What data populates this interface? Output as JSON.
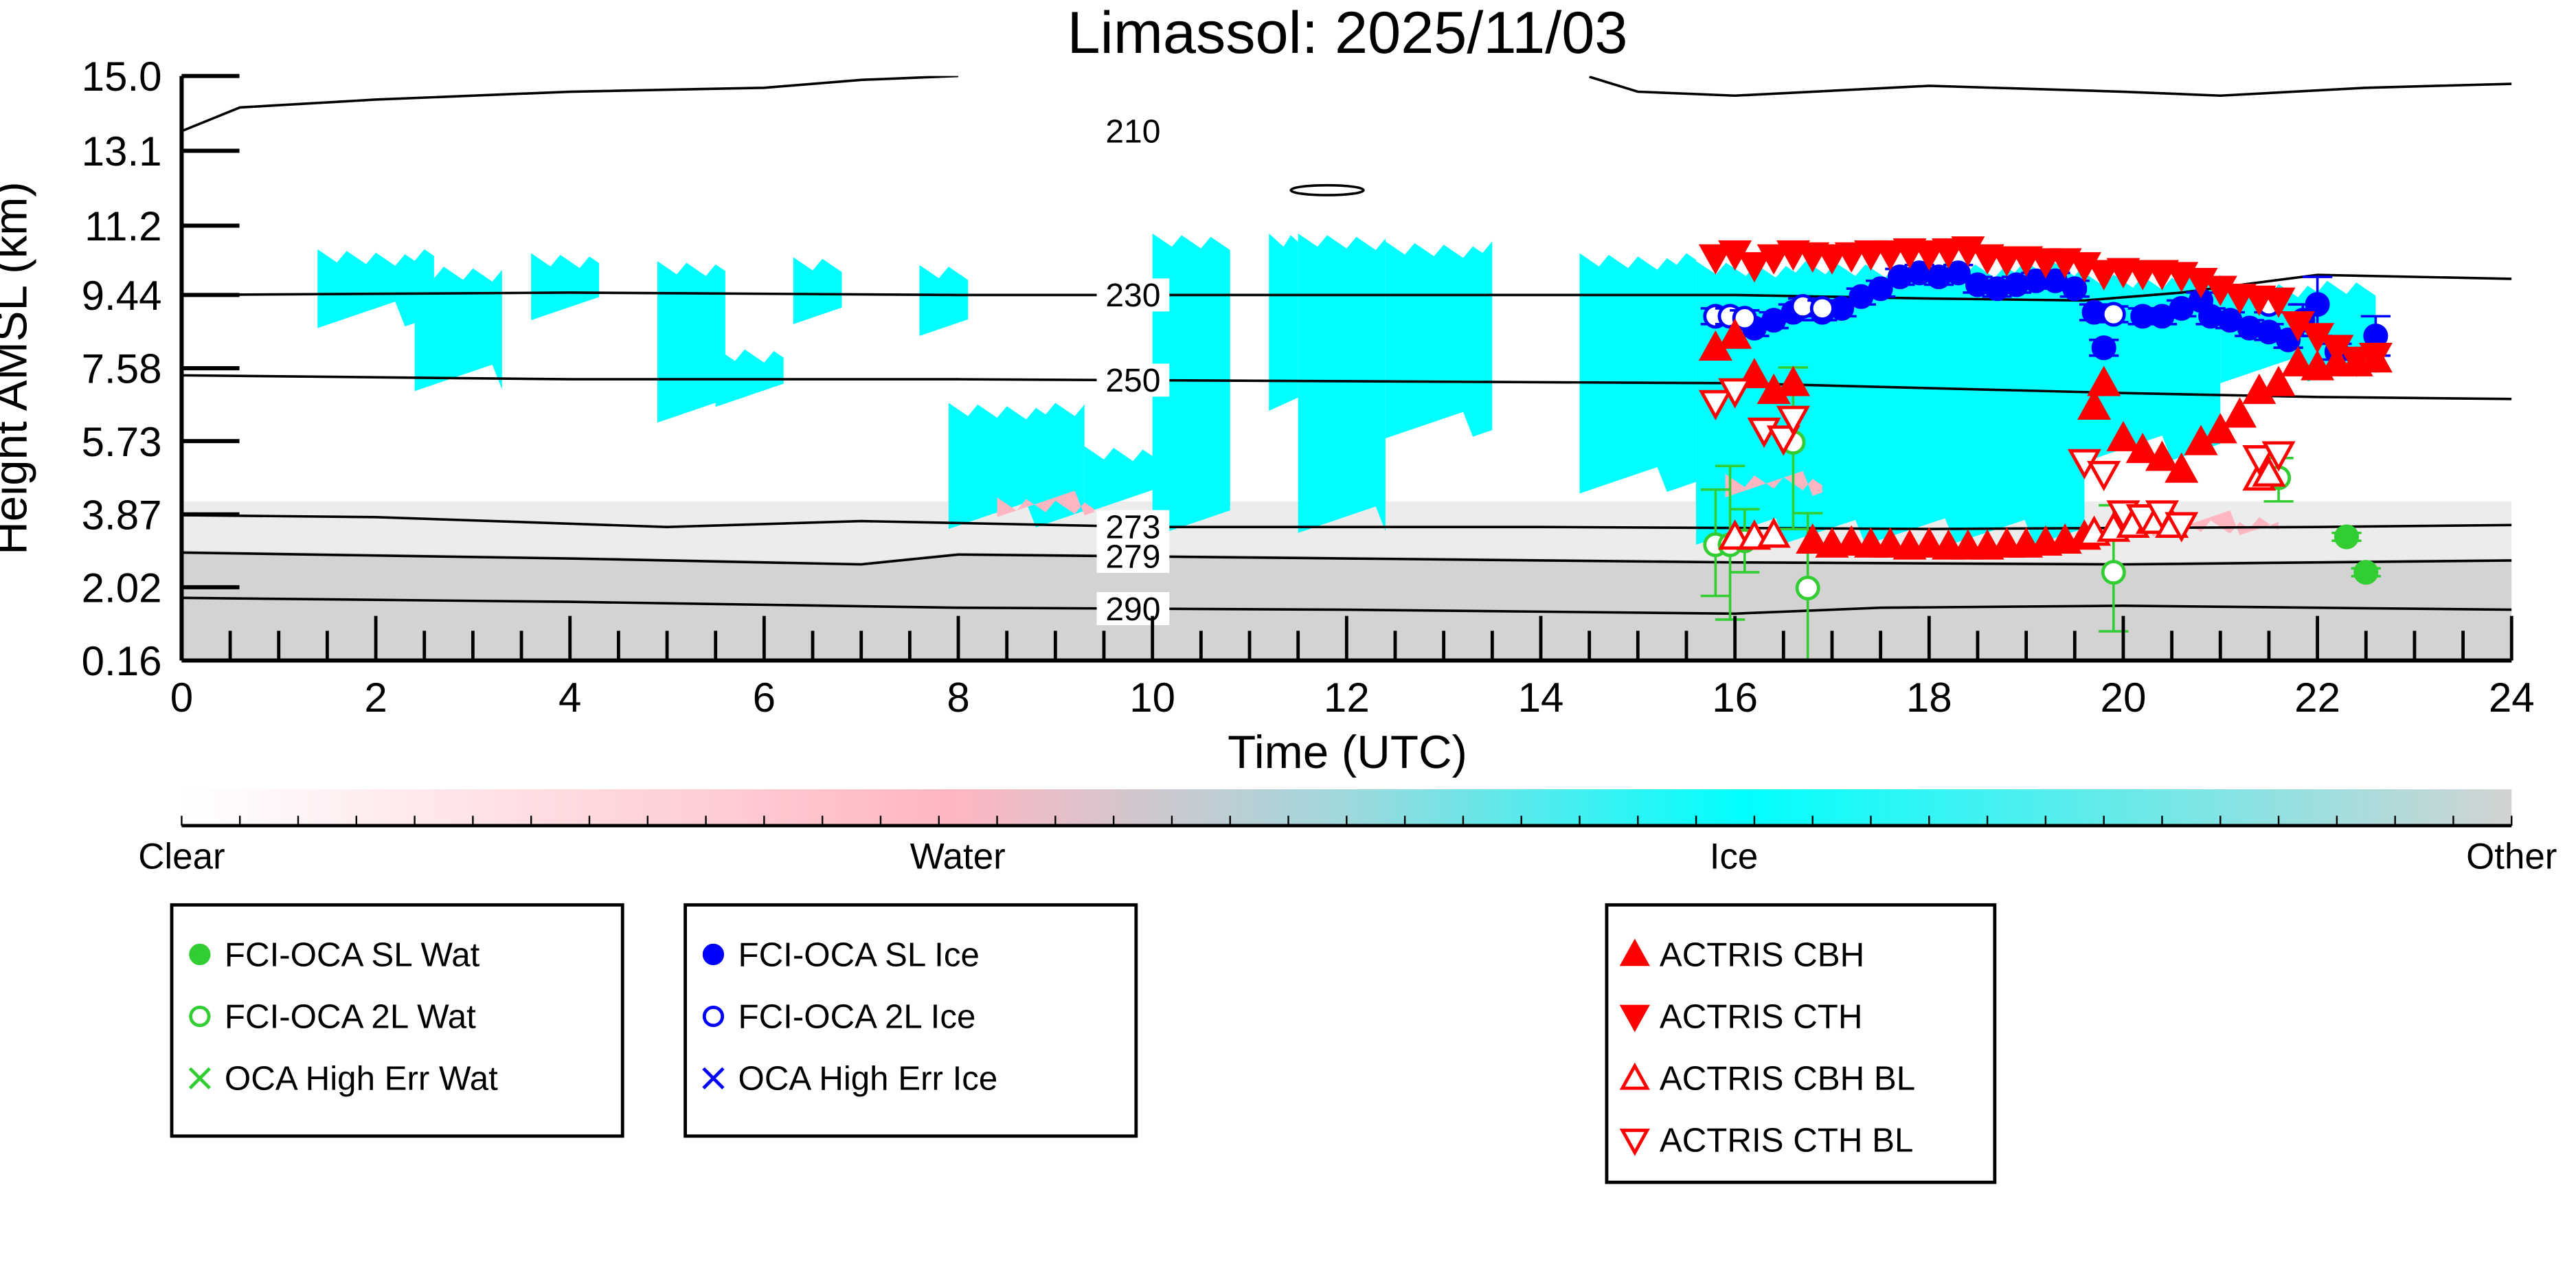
{
  "chart_data": {
    "type": "scatter",
    "title": "Limassol: 2025/11/03",
    "xlabel": "Time (UTC)",
    "ylabel": "Height AMSL (km)",
    "xlim": [
      0,
      24
    ],
    "ylim": [
      0.16,
      15.0
    ],
    "xticks": [
      "0",
      "2",
      "4",
      "6",
      "8",
      "10",
      "12",
      "14",
      "16",
      "18",
      "20",
      "22",
      "24"
    ],
    "xtick_values": [
      0,
      2,
      4,
      6,
      8,
      10,
      12,
      14,
      16,
      18,
      20,
      22,
      24
    ],
    "yticks": [
      "0.16",
      "2.02",
      "3.87",
      "5.73",
      "7.58",
      "9.44",
      "11.2",
      "13.1",
      "15.0"
    ],
    "ytick_values": [
      0.16,
      2.02,
      3.87,
      5.73,
      7.58,
      9.44,
      11.2,
      13.1,
      15.0
    ],
    "colorbar": {
      "labels": [
        "Clear",
        "Water",
        "Ice",
        "Other"
      ],
      "colors": [
        "#ffffff",
        "#ffb6c1",
        "#00ffff",
        "#d3d3d3"
      ]
    },
    "cloud_mask": [
      {
        "class": "ice",
        "t": [
          1.4,
          2.6
        ],
        "h": [
          8.6,
          10.6
        ]
      },
      {
        "class": "ice",
        "t": [
          2.4,
          3.3
        ],
        "h": [
          7.0,
          10.2
        ]
      },
      {
        "class": "ice",
        "t": [
          3.6,
          4.3
        ],
        "h": [
          8.8,
          10.5
        ]
      },
      {
        "class": "ice",
        "t": [
          4.9,
          5.6
        ],
        "h": [
          6.2,
          10.3
        ]
      },
      {
        "class": "ice",
        "t": [
          5.5,
          6.2
        ],
        "h": [
          6.6,
          8.1
        ]
      },
      {
        "class": "ice",
        "t": [
          6.3,
          6.8
        ],
        "h": [
          8.7,
          10.4
        ]
      },
      {
        "class": "ice",
        "t": [
          7.6,
          8.1
        ],
        "h": [
          8.4,
          10.2
        ]
      },
      {
        "class": "ice",
        "t": [
          7.9,
          9.3
        ],
        "h": [
          3.5,
          6.7
        ]
      },
      {
        "class": "ice",
        "t": [
          9.3,
          10.6
        ],
        "h": [
          3.9,
          5.6
        ]
      },
      {
        "class": "ice",
        "t": [
          10.0,
          10.8
        ],
        "h": [
          3.3,
          11.0
        ]
      },
      {
        "class": "ice",
        "t": [
          11.2,
          11.5
        ],
        "h": [
          6.5,
          11.0
        ]
      },
      {
        "class": "ice",
        "t": [
          11.5,
          12.4
        ],
        "h": [
          3.4,
          11.0
        ]
      },
      {
        "class": "ice",
        "t": [
          12.4,
          13.5
        ],
        "h": [
          5.8,
          10.8
        ]
      },
      {
        "class": "ice",
        "t": [
          14.4,
          15.6
        ],
        "h": [
          4.4,
          10.5
        ]
      },
      {
        "class": "ice",
        "t": [
          15.6,
          19.6
        ],
        "h": [
          3.1,
          10.3
        ]
      },
      {
        "class": "ice",
        "t": [
          19.6,
          21.0
        ],
        "h": [
          5.2,
          10.0
        ]
      },
      {
        "class": "ice",
        "t": [
          21.0,
          22.6
        ],
        "h": [
          7.2,
          9.8
        ]
      },
      {
        "class": "water",
        "t": [
          15.9,
          16.9
        ],
        "h": [
          4.3,
          4.9
        ]
      },
      {
        "class": "water",
        "t": [
          8.4,
          9.4
        ],
        "h": [
          3.8,
          4.3
        ]
      },
      {
        "class": "water",
        "t": [
          20.3,
          21.6
        ],
        "h": [
          3.3,
          3.8
        ]
      }
    ],
    "contours": [
      {
        "label": "210",
        "points": [
          [
            0,
            13.6
          ],
          [
            0.6,
            14.2
          ],
          [
            2,
            14.4
          ],
          [
            4,
            14.6
          ],
          [
            6,
            14.7
          ],
          [
            7,
            14.9
          ],
          [
            8,
            15.0
          ]
        ]
      },
      {
        "label": "210",
        "points": [
          [
            14.5,
            14.98
          ],
          [
            15.0,
            14.6
          ],
          [
            16,
            14.5
          ],
          [
            18,
            14.75
          ],
          [
            20,
            14.6
          ],
          [
            21,
            14.5
          ],
          [
            22.5,
            14.7
          ],
          [
            24,
            14.8
          ]
        ]
      },
      {
        "label": "230",
        "points": [
          [
            0,
            9.44
          ],
          [
            4,
            9.5
          ],
          [
            8,
            9.44
          ],
          [
            12,
            9.44
          ],
          [
            16,
            9.44
          ],
          [
            18,
            9.35
          ],
          [
            19.6,
            9.3
          ],
          [
            20.6,
            9.5
          ],
          [
            22,
            9.95
          ],
          [
            24,
            9.85
          ]
        ]
      },
      {
        "label": "250",
        "points": [
          [
            0,
            7.4
          ],
          [
            4,
            7.3
          ],
          [
            8,
            7.3
          ],
          [
            12,
            7.25
          ],
          [
            16,
            7.2
          ],
          [
            20,
            6.95
          ],
          [
            22,
            6.85
          ],
          [
            24,
            6.8
          ]
        ]
      },
      {
        "label": "273",
        "points": [
          [
            0,
            3.85
          ],
          [
            2,
            3.8
          ],
          [
            5,
            3.55
          ],
          [
            7,
            3.7
          ],
          [
            10,
            3.55
          ],
          [
            14,
            3.55
          ],
          [
            18,
            3.5
          ],
          [
            22,
            3.55
          ],
          [
            24,
            3.6
          ]
        ]
      },
      {
        "label": "279",
        "points": [
          [
            0,
            2.9
          ],
          [
            4,
            2.75
          ],
          [
            7,
            2.6
          ],
          [
            8,
            2.85
          ],
          [
            12,
            2.75
          ],
          [
            16,
            2.65
          ],
          [
            20,
            2.6
          ],
          [
            24,
            2.7
          ]
        ]
      },
      {
        "label": "290",
        "points": [
          [
            0,
            1.75
          ],
          [
            4,
            1.65
          ],
          [
            8,
            1.5
          ],
          [
            12,
            1.45
          ],
          [
            16,
            1.35
          ],
          [
            17.5,
            1.5
          ],
          [
            20,
            1.55
          ],
          [
            24,
            1.45
          ]
        ]
      }
    ],
    "series": [
      {
        "name": "FCI-OCA SL Wat",
        "marker": "circle-filled",
        "color": "#32cd32",
        "points": [
          [
            22.3,
            3.3,
            3.2,
            3.4
          ],
          [
            22.5,
            2.4,
            2.3,
            2.5
          ]
        ]
      },
      {
        "name": "FCI-OCA 2L Wat",
        "marker": "circle-open",
        "color": "#32cd32",
        "points": [
          [
            15.8,
            3.1,
            1.8,
            4.5
          ],
          [
            15.95,
            3.1,
            1.2,
            5.1
          ],
          [
            16.1,
            3.2,
            2.4,
            4.0
          ],
          [
            16.6,
            5.7,
            3.5,
            7.6
          ],
          [
            16.75,
            2.0,
            -0.5,
            3.9
          ],
          [
            19.9,
            2.4,
            0.9,
            4.1
          ],
          [
            21.6,
            4.8,
            4.2,
            5.3
          ]
        ]
      },
      {
        "name": "OCA High Err Wat",
        "marker": "x",
        "color": "#32cd32",
        "points": []
      },
      {
        "name": "FCI-OCA SL Ice",
        "marker": "circle-filled",
        "color": "#0000ff",
        "points": [
          [
            16.2,
            8.6,
            8.4,
            8.8
          ],
          [
            16.4,
            8.8,
            8.6,
            9.0
          ],
          [
            16.6,
            9.0,
            8.8,
            9.2
          ],
          [
            16.9,
            9.0,
            8.8,
            9.2
          ],
          [
            17.1,
            9.1,
            8.9,
            9.3
          ],
          [
            17.3,
            9.4,
            9.2,
            9.6
          ],
          [
            17.5,
            9.6,
            9.4,
            9.8
          ],
          [
            17.7,
            9.9,
            9.7,
            10.1
          ],
          [
            17.9,
            10.0,
            9.8,
            10.2
          ],
          [
            18.1,
            9.9,
            9.7,
            10.1
          ],
          [
            18.3,
            10.0,
            9.8,
            10.2
          ],
          [
            18.5,
            9.7,
            9.5,
            9.9
          ],
          [
            18.7,
            9.6,
            9.4,
            9.8
          ],
          [
            18.9,
            9.7,
            9.5,
            9.9
          ],
          [
            19.1,
            9.8,
            9.6,
            10.0
          ],
          [
            19.3,
            9.8,
            9.6,
            10.0
          ],
          [
            19.5,
            9.6,
            9.4,
            9.8
          ],
          [
            19.7,
            9.0,
            8.8,
            9.2
          ],
          [
            19.8,
            8.1,
            7.9,
            8.3
          ],
          [
            20.2,
            8.9,
            8.7,
            9.1
          ],
          [
            20.4,
            8.9,
            8.7,
            9.1
          ],
          [
            20.6,
            9.1,
            8.9,
            9.3
          ],
          [
            20.8,
            9.3,
            9.1,
            9.5
          ],
          [
            20.9,
            8.9,
            8.7,
            9.1
          ],
          [
            21.1,
            8.8,
            8.6,
            9.0
          ],
          [
            21.3,
            8.6,
            8.4,
            8.8
          ],
          [
            21.5,
            8.5,
            8.3,
            8.7
          ],
          [
            21.7,
            8.3,
            8.1,
            8.5
          ],
          [
            21.85,
            8.8,
            8.4,
            9.2
          ],
          [
            22.0,
            9.2,
            8.4,
            9.9
          ],
          [
            22.2,
            8.0,
            7.8,
            8.2
          ],
          [
            22.6,
            8.4,
            7.9,
            8.9
          ]
        ]
      },
      {
        "name": "FCI-OCA 2L Ice",
        "marker": "circle-open",
        "color": "#0000ff",
        "points": [
          [
            15.8,
            8.9,
            8.7,
            9.1
          ],
          [
            15.95,
            8.9,
            8.7,
            9.1
          ],
          [
            16.1,
            8.85,
            8.65,
            9.05
          ],
          [
            16.7,
            9.15,
            8.95,
            9.35
          ],
          [
            16.9,
            9.1,
            8.9,
            9.3
          ],
          [
            19.9,
            8.95,
            8.75,
            9.15
          ],
          [
            21.5,
            9.2,
            9.0,
            9.4
          ]
        ]
      },
      {
        "name": "OCA High Err Ice",
        "marker": "x",
        "color": "#0000ff",
        "points": []
      },
      {
        "name": "ACTRIS CBH",
        "marker": "triangle-up-filled",
        "color": "#ff0000",
        "points": [
          [
            15.8,
            8.1
          ],
          [
            16.0,
            8.4
          ],
          [
            16.2,
            7.4
          ],
          [
            16.4,
            7.0
          ],
          [
            16.6,
            7.2
          ],
          [
            16.8,
            3.2
          ],
          [
            17.0,
            3.1
          ],
          [
            17.2,
            3.15
          ],
          [
            17.4,
            3.1
          ],
          [
            17.6,
            3.1
          ],
          [
            17.8,
            3.05
          ],
          [
            18.0,
            3.1
          ],
          [
            18.2,
            3.05
          ],
          [
            18.4,
            3.05
          ],
          [
            18.6,
            3.05
          ],
          [
            18.8,
            3.1
          ],
          [
            19.0,
            3.1
          ],
          [
            19.2,
            3.15
          ],
          [
            19.4,
            3.2
          ],
          [
            19.6,
            3.3
          ],
          [
            19.7,
            6.6
          ],
          [
            19.8,
            7.2
          ],
          [
            20.0,
            5.8
          ],
          [
            20.2,
            5.5
          ],
          [
            20.4,
            5.3
          ],
          [
            20.6,
            5.0
          ],
          [
            20.8,
            5.7
          ],
          [
            21.0,
            6.0
          ],
          [
            21.2,
            6.4
          ],
          [
            21.4,
            7.0
          ],
          [
            21.6,
            7.2
          ],
          [
            21.8,
            7.7
          ],
          [
            22.0,
            7.6
          ],
          [
            22.2,
            7.7
          ],
          [
            22.4,
            7.7
          ],
          [
            22.6,
            7.8
          ]
        ]
      },
      {
        "name": "ACTRIS CTH",
        "marker": "triangle-down-filled",
        "color": "#ff0000",
        "points": [
          [
            15.8,
            10.4
          ],
          [
            16.0,
            10.5
          ],
          [
            16.2,
            10.2
          ],
          [
            16.4,
            10.4
          ],
          [
            16.6,
            10.5
          ],
          [
            16.8,
            10.45
          ],
          [
            17.0,
            10.4
          ],
          [
            17.2,
            10.45
          ],
          [
            17.4,
            10.5
          ],
          [
            17.6,
            10.5
          ],
          [
            17.8,
            10.55
          ],
          [
            18.0,
            10.5
          ],
          [
            18.2,
            10.55
          ],
          [
            18.4,
            10.6
          ],
          [
            18.6,
            10.4
          ],
          [
            18.8,
            10.35
          ],
          [
            19.0,
            10.35
          ],
          [
            19.2,
            10.3
          ],
          [
            19.4,
            10.3
          ],
          [
            19.6,
            10.2
          ],
          [
            19.8,
            10.0
          ],
          [
            20.0,
            10.05
          ],
          [
            20.2,
            10.0
          ],
          [
            20.4,
            10.0
          ],
          [
            20.6,
            9.95
          ],
          [
            20.8,
            9.8
          ],
          [
            21.0,
            9.6
          ],
          [
            21.2,
            9.4
          ],
          [
            21.4,
            9.35
          ],
          [
            21.6,
            9.3
          ],
          [
            21.8,
            8.7
          ],
          [
            22.0,
            8.4
          ],
          [
            22.2,
            8.1
          ],
          [
            22.4,
            7.8
          ],
          [
            22.6,
            7.9
          ]
        ]
      },
      {
        "name": "ACTRIS CBH BL",
        "marker": "triangle-up-open",
        "color": "#ff0000",
        "points": [
          [
            16.0,
            3.3
          ],
          [
            16.2,
            3.3
          ],
          [
            16.4,
            3.35
          ],
          [
            19.7,
            3.4
          ],
          [
            19.9,
            3.5
          ],
          [
            20.1,
            3.6
          ],
          [
            20.3,
            3.7
          ],
          [
            20.5,
            3.6
          ],
          [
            21.4,
            4.8
          ],
          [
            21.5,
            4.9
          ]
        ]
      },
      {
        "name": "ACTRIS CTH BL",
        "marker": "triangle-down-open",
        "color": "#ff0000",
        "points": [
          [
            15.8,
            6.7
          ],
          [
            16.0,
            7.0
          ],
          [
            16.3,
            6.0
          ],
          [
            16.5,
            5.8
          ],
          [
            16.6,
            6.3
          ],
          [
            19.6,
            5.2
          ],
          [
            19.8,
            4.9
          ],
          [
            20.0,
            3.9
          ],
          [
            20.2,
            3.8
          ],
          [
            20.4,
            3.9
          ],
          [
            20.6,
            3.6
          ],
          [
            21.4,
            5.3
          ],
          [
            21.6,
            5.4
          ]
        ]
      }
    ],
    "legends": [
      {
        "entries": [
          "FCI-OCA SL Wat",
          "FCI-OCA 2L Wat",
          "OCA High Err Wat"
        ]
      },
      {
        "entries": [
          "FCI-OCA SL Ice",
          "FCI-OCA 2L Ice",
          "OCA High Err Ice"
        ]
      },
      {
        "entries": [
          "ACTRIS CBH",
          "ACTRIS CTH",
          "ACTRIS CBH BL",
          "ACTRIS CTH BL"
        ]
      }
    ]
  }
}
